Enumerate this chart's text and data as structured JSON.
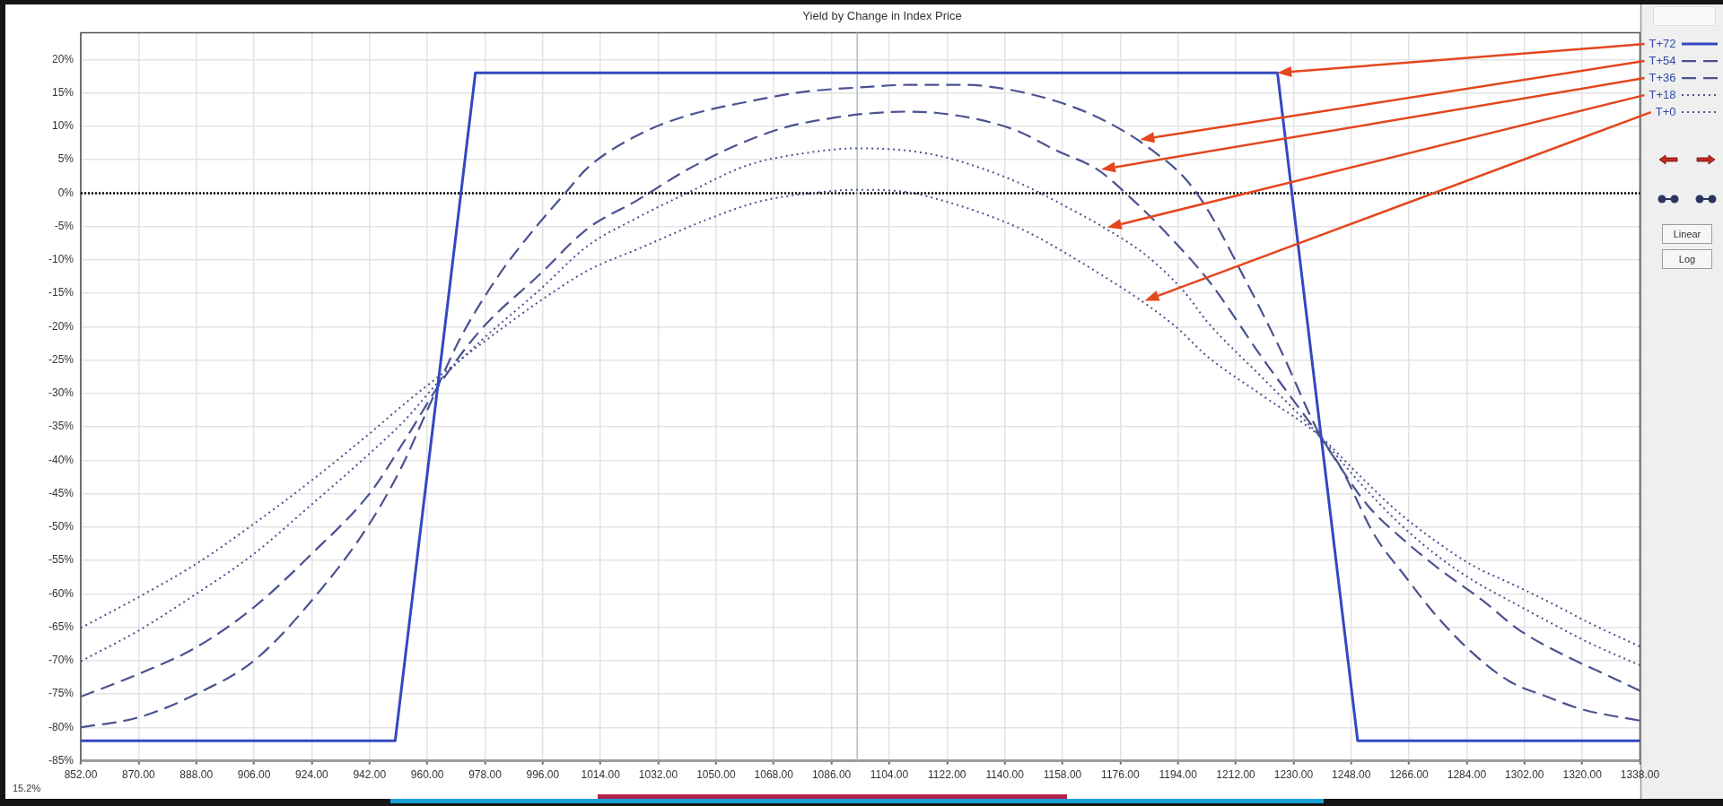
{
  "chart_data": {
    "type": "line",
    "title": "Yield by Change in Index Price",
    "xlim": [
      852,
      1338
    ],
    "xticks": [
      {
        "value": 852,
        "label": "852.00"
      },
      {
        "value": 870,
        "label": "870.00"
      },
      {
        "value": 888,
        "label": "888.00"
      },
      {
        "value": 906,
        "label": "906.00"
      },
      {
        "value": 924,
        "label": "924.00"
      },
      {
        "value": 942,
        "label": "942.00"
      },
      {
        "value": 960,
        "label": "960.00"
      },
      {
        "value": 978,
        "label": "978.00"
      },
      {
        "value": 996,
        "label": "996.00"
      },
      {
        "value": 1014,
        "label": "1014.00"
      },
      {
        "value": 1032,
        "label": "1032.00"
      },
      {
        "value": 1050,
        "label": "1050.00"
      },
      {
        "value": 1068,
        "label": "1068.00"
      },
      {
        "value": 1086,
        "label": "1086.00"
      },
      {
        "value": 1104,
        "label": "1104.00"
      },
      {
        "value": 1122,
        "label": "1122.00"
      },
      {
        "value": 1140,
        "label": "1140.00"
      },
      {
        "value": 1158,
        "label": "1158.00"
      },
      {
        "value": 1176,
        "label": "1176.00"
      },
      {
        "value": 1194,
        "label": "1194.00"
      },
      {
        "value": 1212,
        "label": "1212.00"
      },
      {
        "value": 1230,
        "label": "1230.00"
      },
      {
        "value": 1248,
        "label": "1248.00"
      },
      {
        "value": 1266,
        "label": "1266.00"
      },
      {
        "value": 1284,
        "label": "1284.00"
      },
      {
        "value": 1302,
        "label": "1302.00"
      },
      {
        "value": 1320,
        "label": "1320.00"
      },
      {
        "value": 1338,
        "label": "1338.00"
      }
    ],
    "ylim": [
      -85,
      24
    ],
    "yticks": [
      {
        "value": 20,
        "label": "20%"
      },
      {
        "value": 15,
        "label": "15%"
      },
      {
        "value": 10,
        "label": "10%"
      },
      {
        "value": 5,
        "label": "5%"
      },
      {
        "value": 0,
        "label": "0%"
      },
      {
        "value": -5,
        "label": "-5%"
      },
      {
        "value": -10,
        "label": "-10%"
      },
      {
        "value": -15,
        "label": "-15%"
      },
      {
        "value": -20,
        "label": "-20%"
      },
      {
        "value": -25,
        "label": "-25%"
      },
      {
        "value": -30,
        "label": "-30%"
      },
      {
        "value": -35,
        "label": "-35%"
      },
      {
        "value": -40,
        "label": "-40%"
      },
      {
        "value": -45,
        "label": "-45%"
      },
      {
        "value": -50,
        "label": "-50%"
      },
      {
        "value": -55,
        "label": "-55%"
      },
      {
        "value": -60,
        "label": "-60%"
      },
      {
        "value": -65,
        "label": "-65%"
      },
      {
        "value": -70,
        "label": "-70%"
      },
      {
        "value": -75,
        "label": "-75%"
      },
      {
        "value": -80,
        "label": "-80%"
      },
      {
        "value": -85,
        "label": "-85%"
      }
    ],
    "grid": true,
    "legend": "right",
    "ref_lines": [
      {
        "axis": "y",
        "value": 0,
        "color": "#000000",
        "line_style": "dotted"
      },
      {
        "axis": "x",
        "value": 1094,
        "color": "#a8bfd0"
      }
    ],
    "annotations": [
      "15.2%",
      "Linear",
      "Log"
    ],
    "series": [
      {
        "name": "T+72",
        "color": "#3448c0",
        "line_style": "solid",
        "x": [
          852,
          950,
          975,
          1225,
          1250,
          1338
        ],
        "values": [
          -82,
          -82,
          18,
          18,
          -82,
          -82
        ]
      },
      {
        "name": "T+54",
        "color": "#4a5290",
        "line_style": "dashed",
        "x": [
          852,
          870,
          888,
          906,
          924,
          942,
          952,
          960,
          970,
          982,
          994,
          1003,
          1010,
          1027,
          1041,
          1060,
          1078,
          1094,
          1110,
          1128,
          1140,
          1153,
          1165,
          1177,
          1186,
          1196,
          1203,
          1215,
          1226,
          1238,
          1245,
          1255,
          1265,
          1274,
          1285,
          1297,
          1309,
          1320,
          1338
        ],
        "values": [
          -80,
          -78.5,
          -75,
          -70,
          -61,
          -49.5,
          -41,
          -32.5,
          -22,
          -12.5,
          -5,
          0,
          3.8,
          9,
          11.6,
          13.7,
          15.2,
          15.8,
          16.2,
          16.2,
          15.6,
          14.2,
          12.2,
          9.3,
          6.4,
          2.3,
          -2.3,
          -13,
          -23.5,
          -36,
          -41.3,
          -51,
          -57.5,
          -63,
          -68.5,
          -73,
          -75.4,
          -77.3,
          -79
        ]
      },
      {
        "name": "T+36",
        "color": "#4a5290",
        "line_style": "dashed",
        "x": [
          852,
          870,
          888,
          906,
          924,
          942,
          953,
          964,
          977,
          995,
          1010,
          1025,
          1041,
          1057,
          1072,
          1087,
          1097,
          1109,
          1119,
          1132,
          1144,
          1156,
          1169,
          1179,
          1190,
          1204,
          1220,
          1238,
          1253,
          1265,
          1276,
          1289,
          1300,
          1314,
          1326,
          1338
        ],
        "values": [
          -75.4,
          -72,
          -68,
          -62,
          -54,
          -45,
          -37,
          -28.5,
          -20.3,
          -12.2,
          -5.3,
          -1.2,
          3.5,
          7.3,
          9.9,
          11.3,
          11.9,
          12.2,
          12,
          11,
          9.3,
          6.4,
          3.5,
          -0.6,
          -5.8,
          -13.4,
          -24.5,
          -36.3,
          -46.7,
          -52.2,
          -56.5,
          -61,
          -65.3,
          -69.1,
          -71.8,
          -74.5
        ]
      },
      {
        "name": "T+18",
        "color": "#4a5290",
        "line_style": "dotted",
        "x": [
          852,
          870,
          888,
          906,
          924,
          942,
          953,
          964,
          977,
          995,
          1010,
          1025,
          1041,
          1060,
          1078,
          1094,
          1109,
          1122,
          1134,
          1146,
          1159,
          1170,
          1184,
          1196,
          1203,
          1220,
          1238,
          1250,
          1262,
          1274,
          1286,
          1298,
          1310,
          1322,
          1338
        ],
        "values": [
          -70.1,
          -65.5,
          -60,
          -54,
          -46.6,
          -39,
          -34,
          -28,
          -22,
          -14.5,
          -7.9,
          -3.8,
          0,
          4.2,
          6,
          6.7,
          6.4,
          5.3,
          3.5,
          1.2,
          -2,
          -4.9,
          -9.3,
          -14.8,
          -19.2,
          -27.5,
          -36.3,
          -43,
          -49,
          -54,
          -58,
          -61.2,
          -64.3,
          -67.3,
          -70.7
        ]
      },
      {
        "name": "T+0",
        "color": "#4a5290",
        "line_style": "dotted",
        "x": [
          852,
          870,
          888,
          906,
          924,
          942,
          953,
          964,
          977,
          995,
          1010,
          1027,
          1048,
          1064,
          1080,
          1094,
          1109,
          1119,
          1134,
          1147,
          1159,
          1171,
          1184,
          1194,
          1203,
          1220,
          1238,
          1250,
          1262,
          1274,
          1286,
          1298,
          1310,
          1322,
          1338
        ],
        "values": [
          -65.1,
          -60.5,
          -55.5,
          -49.5,
          -43,
          -36,
          -31.5,
          -27.3,
          -22.5,
          -16.2,
          -11.6,
          -8.1,
          -3.8,
          -1.2,
          0,
          0.5,
          0.2,
          -0.9,
          -3.2,
          -5.8,
          -9,
          -12.5,
          -16.6,
          -20.3,
          -24.4,
          -30.2,
          -36.3,
          -42,
          -47.5,
          -52,
          -55.8,
          -58.5,
          -61.3,
          -64.3,
          -67.9
        ]
      }
    ]
  }
}
